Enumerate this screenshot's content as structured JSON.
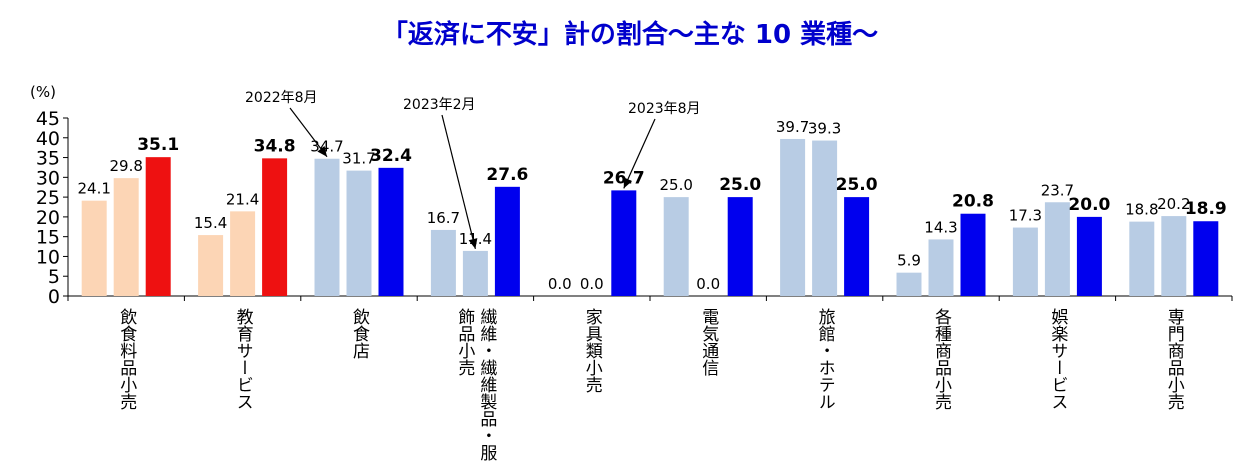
{
  "chart_data": {
    "type": "bar",
    "title": "「返済に不安」計の割合～主な 10 業種～",
    "ylabel": "(%)",
    "ylim": [
      0,
      45
    ],
    "yticks": [
      0,
      5,
      10,
      15,
      20,
      25,
      30,
      35,
      40,
      45
    ],
    "grid": false,
    "categories": [
      "飲食料品小売",
      "教育サービス",
      "飲食店",
      "繊維・繊維製品・服飾品小売",
      "家具類小売",
      "電気通信",
      "旅館・ホテル",
      "各種商品小売",
      "娯楽サービス",
      "専門商品小売"
    ],
    "category_lines": [
      [
        "飲食料品小売"
      ],
      [
        "教育サービス"
      ],
      [
        "飲食店"
      ],
      [
        "繊維・繊維製品・服",
        "飾品小売"
      ],
      [
        "家具類小売"
      ],
      [
        "電気通信"
      ],
      [
        "旅館・ホテル"
      ],
      [
        "各種商品小売"
      ],
      [
        "娯楽サービス"
      ],
      [
        "専門商品小売"
      ]
    ],
    "series": [
      {
        "name": "2022年8月",
        "values": [
          24.1,
          15.4,
          34.7,
          16.7,
          0.0,
          25.0,
          39.7,
          5.9,
          17.3,
          18.8
        ]
      },
      {
        "name": "2023年2月",
        "values": [
          29.8,
          21.4,
          31.7,
          11.4,
          0.0,
          0.0,
          39.3,
          14.3,
          23.7,
          20.2
        ]
      },
      {
        "name": "2023年8月",
        "values": [
          35.1,
          34.8,
          32.4,
          27.6,
          26.7,
          25.0,
          25.0,
          20.8,
          20.0,
          18.9
        ]
      }
    ],
    "annotations": [
      {
        "text": "2022年8月",
        "series": 0,
        "category": 2
      },
      {
        "text": "2023年2月",
        "series": 1,
        "category": 3
      },
      {
        "text": "2023年8月",
        "series": 2,
        "category": 4
      }
    ],
    "colors": {
      "highlight": [
        "#fcd5b5",
        "#fcd5b5",
        "#ee1111"
      ],
      "normal": [
        "#b8cce4",
        "#b8cce4",
        "#0000ee"
      ]
    },
    "highlight_categories": [
      0,
      1
    ]
  }
}
